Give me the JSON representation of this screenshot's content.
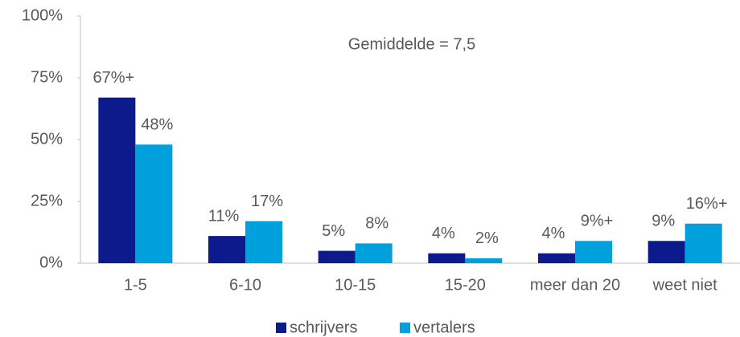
{
  "chart_data": {
    "type": "bar",
    "annotation": "Gemiddelde = 7,5",
    "categories": [
      "1-5",
      "6-10",
      "10-15",
      "15-20",
      "meer dan 20",
      "weet niet"
    ],
    "series": [
      {
        "name": "schrijvers",
        "color": "#0c1a8c",
        "values": [
          67,
          11,
          5,
          4,
          4,
          9
        ],
        "value_labels": [
          "67%+",
          "11%",
          "5%",
          "4%",
          "4%",
          "9%"
        ]
      },
      {
        "name": "vertalers",
        "color": "#00a0dc",
        "values": [
          48,
          17,
          8,
          2,
          9,
          16
        ],
        "value_labels": [
          "48%",
          "17%",
          "8%",
          "2%",
          "9%+",
          "16%+"
        ]
      }
    ],
    "ylim": [
      0,
      100
    ],
    "yticks": [
      {
        "value": 0,
        "label": "0%"
      },
      {
        "value": 25,
        "label": "25%"
      },
      {
        "value": 50,
        "label": "50%"
      },
      {
        "value": 75,
        "label": "75%"
      },
      {
        "value": 100,
        "label": "100%"
      }
    ],
    "legend": "bottom"
  }
}
